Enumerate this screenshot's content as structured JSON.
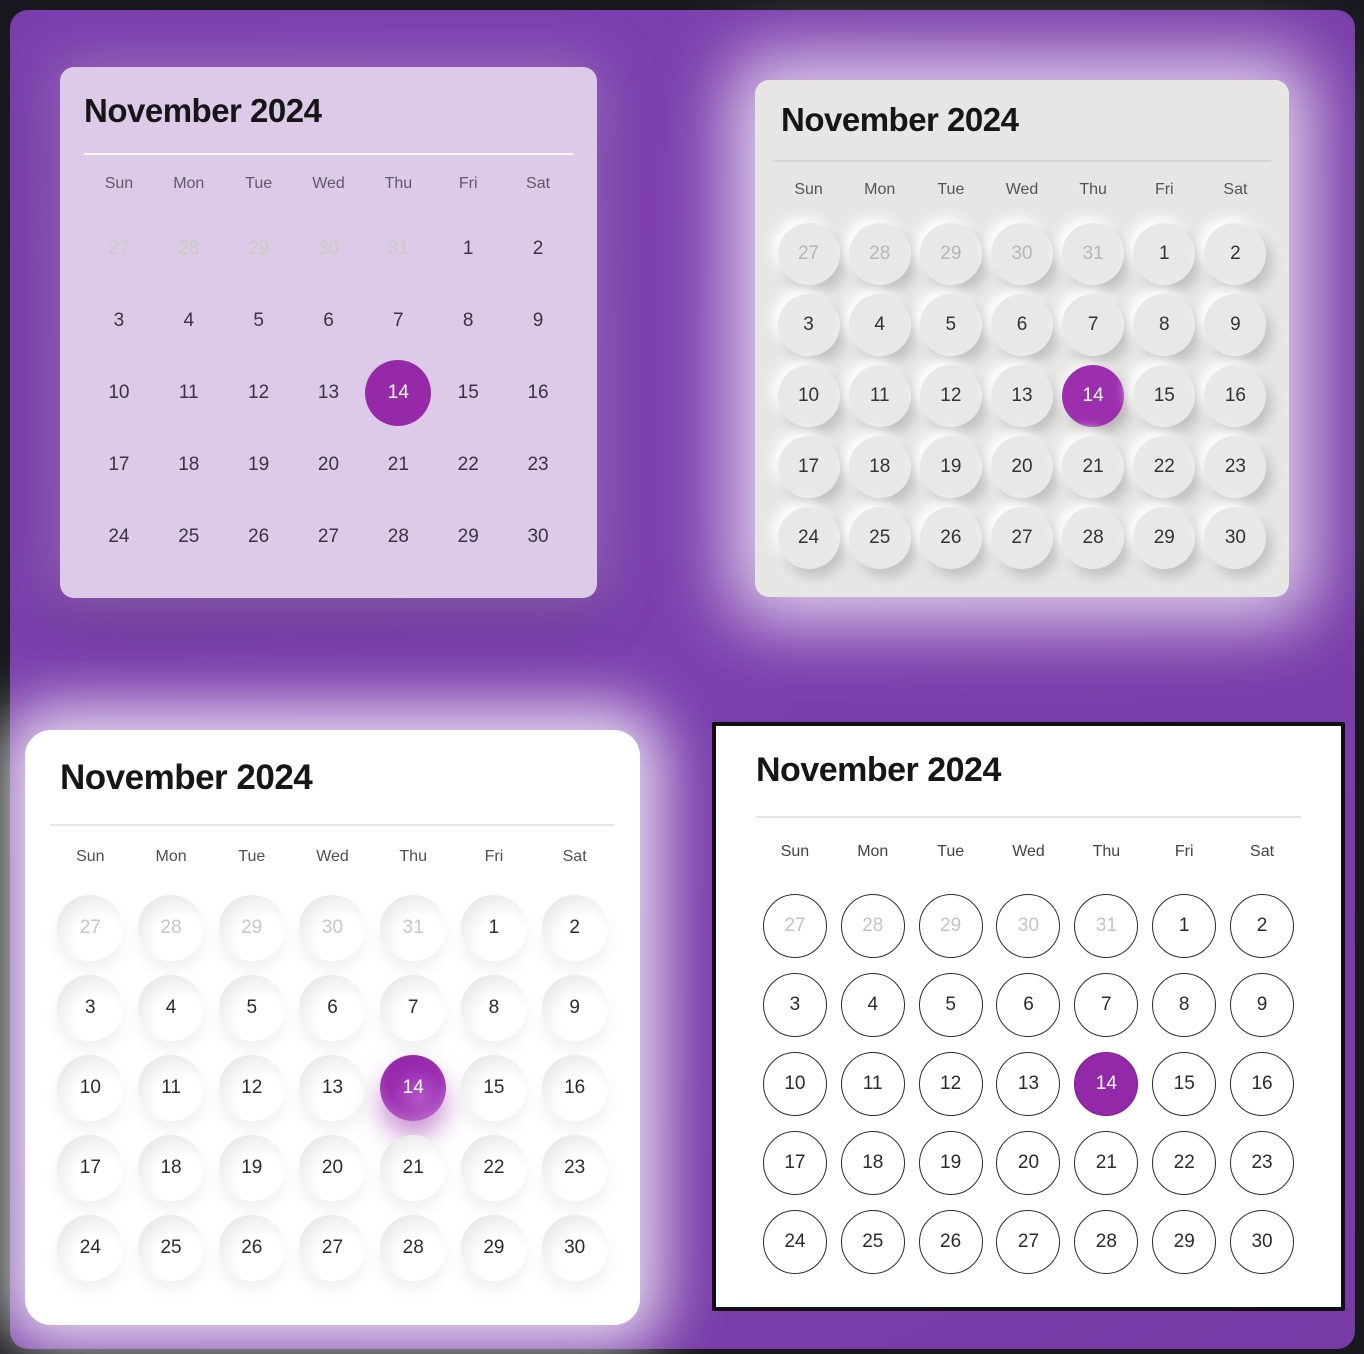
{
  "page": {
    "frame_color": "#17191e",
    "background_color": "#7a3daa",
    "accent_color": "#9a2cac"
  },
  "weekdays": [
    "Sun",
    "Mon",
    "Tue",
    "Wed",
    "Thu",
    "Fri",
    "Sat"
  ],
  "days": {
    "prev_month": [
      27,
      28,
      29,
      30,
      31
    ],
    "current_month": [
      1,
      2,
      3,
      4,
      5,
      6,
      7,
      8,
      9,
      10,
      11,
      12,
      13,
      14,
      15,
      16,
      17,
      18,
      19,
      20,
      21,
      22,
      23,
      24,
      25,
      26,
      27,
      28,
      29,
      30
    ],
    "selected_day": 14
  },
  "calendars": [
    {
      "title": "November 2024",
      "style": "flat-lavender",
      "card_color": "#dccae8",
      "selected_color": "#9529a8"
    },
    {
      "title": "November 2024",
      "style": "neumorphic-gray",
      "card_color": "#e7e6e5",
      "selected_color": "#9c2fae"
    },
    {
      "title": "November 2024",
      "style": "neumorphic-white",
      "card_color": "#ffffff",
      "selected_color": "#9c2db2"
    },
    {
      "title": "November 2024",
      "style": "outline",
      "card_color": "#ffffff",
      "selected_color": "#9328a9"
    }
  ]
}
